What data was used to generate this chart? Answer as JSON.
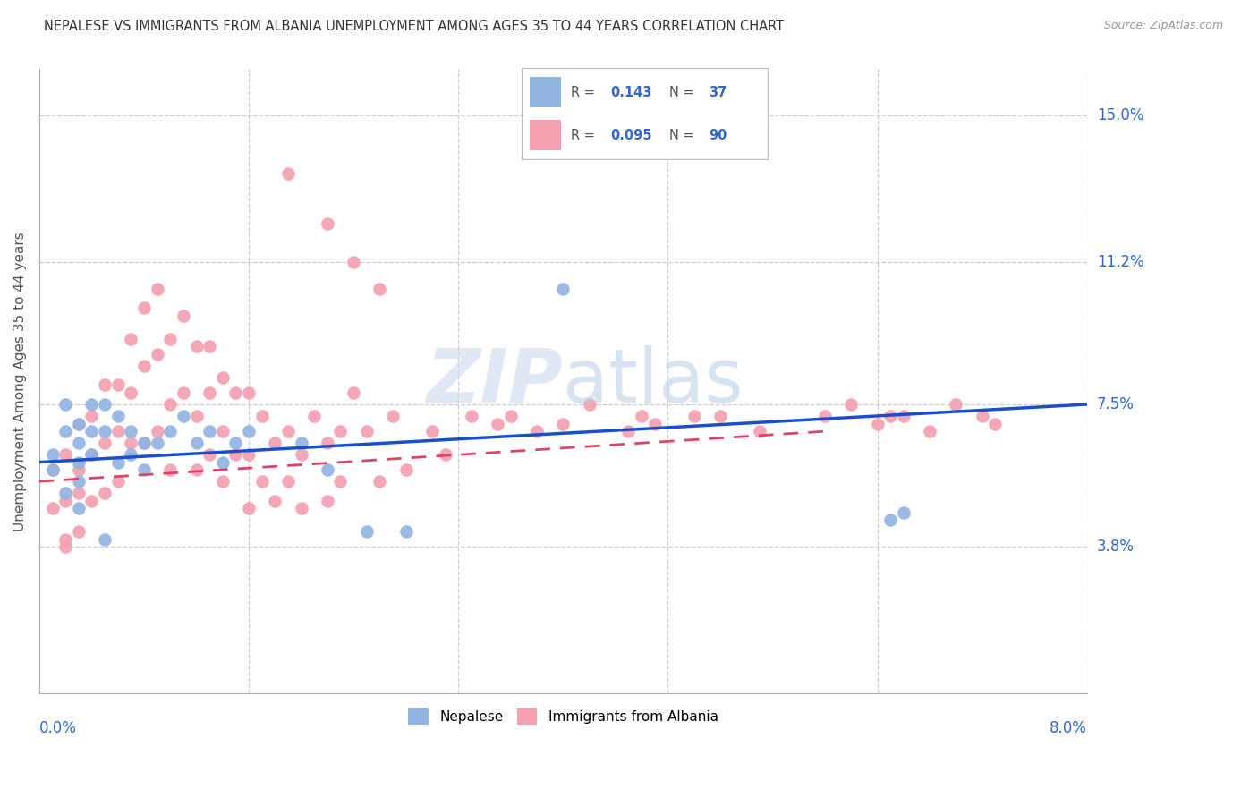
{
  "title": "NEPALESE VS IMMIGRANTS FROM ALBANIA UNEMPLOYMENT AMONG AGES 35 TO 44 YEARS CORRELATION CHART",
  "source": "Source: ZipAtlas.com",
  "ylabel": "Unemployment Among Ages 35 to 44 years",
  "ytick_labels": [
    "15.0%",
    "11.2%",
    "7.5%",
    "3.8%"
  ],
  "ytick_values": [
    0.15,
    0.112,
    0.075,
    0.038
  ],
  "xmin": 0.0,
  "xmax": 0.08,
  "ymin": 0.0,
  "ymax": 0.162,
  "nepalese_color": "#92b4e3",
  "albania_color": "#f4a0b0",
  "nepalese_line_color": "#1a4fcc",
  "albania_line_color": "#dd4466",
  "background_color": "#ffffff",
  "nepalese_line_start_y": 0.06,
  "nepalese_line_end_y": 0.075,
  "albania_line_start_y": 0.055,
  "albania_line_end_y": 0.068,
  "nep_x": [
    0.001,
    0.002,
    0.002,
    0.003,
    0.003,
    0.003,
    0.003,
    0.004,
    0.004,
    0.004,
    0.005,
    0.005,
    0.005,
    0.006,
    0.006,
    0.007,
    0.007,
    0.008,
    0.008,
    0.009,
    0.01,
    0.011,
    0.012,
    0.013,
    0.014,
    0.015,
    0.016,
    0.02,
    0.022,
    0.025,
    0.028,
    0.04,
    0.065,
    0.066,
    0.001,
    0.002,
    0.003
  ],
  "nep_y": [
    0.062,
    0.068,
    0.075,
    0.07,
    0.065,
    0.06,
    0.055,
    0.075,
    0.068,
    0.062,
    0.075,
    0.068,
    0.04,
    0.072,
    0.06,
    0.068,
    0.062,
    0.065,
    0.058,
    0.065,
    0.068,
    0.072,
    0.065,
    0.068,
    0.06,
    0.065,
    0.068,
    0.065,
    0.058,
    0.042,
    0.042,
    0.105,
    0.045,
    0.047,
    0.058,
    0.052,
    0.048
  ],
  "alb_x": [
    0.001,
    0.001,
    0.002,
    0.002,
    0.002,
    0.003,
    0.003,
    0.003,
    0.003,
    0.004,
    0.004,
    0.004,
    0.005,
    0.005,
    0.005,
    0.006,
    0.006,
    0.006,
    0.007,
    0.007,
    0.007,
    0.008,
    0.008,
    0.008,
    0.009,
    0.009,
    0.009,
    0.01,
    0.01,
    0.01,
    0.011,
    0.011,
    0.012,
    0.012,
    0.012,
    0.013,
    0.013,
    0.013,
    0.014,
    0.014,
    0.014,
    0.015,
    0.015,
    0.016,
    0.016,
    0.016,
    0.017,
    0.017,
    0.018,
    0.018,
    0.019,
    0.019,
    0.02,
    0.02,
    0.021,
    0.022,
    0.022,
    0.023,
    0.023,
    0.024,
    0.025,
    0.026,
    0.027,
    0.028,
    0.03,
    0.031,
    0.033,
    0.035,
    0.036,
    0.038,
    0.04,
    0.042,
    0.045,
    0.046,
    0.047,
    0.05,
    0.052,
    0.055,
    0.06,
    0.062,
    0.064,
    0.065,
    0.066,
    0.068,
    0.07,
    0.072,
    0.073,
    0.019,
    0.022,
    0.024,
    0.026,
    0.002
  ],
  "alb_y": [
    0.058,
    0.048,
    0.062,
    0.05,
    0.04,
    0.07,
    0.058,
    0.052,
    0.042,
    0.072,
    0.062,
    0.05,
    0.08,
    0.065,
    0.052,
    0.08,
    0.068,
    0.055,
    0.092,
    0.078,
    0.065,
    0.1,
    0.085,
    0.065,
    0.105,
    0.088,
    0.068,
    0.092,
    0.075,
    0.058,
    0.098,
    0.078,
    0.09,
    0.072,
    0.058,
    0.09,
    0.078,
    0.062,
    0.082,
    0.068,
    0.055,
    0.078,
    0.062,
    0.078,
    0.062,
    0.048,
    0.072,
    0.055,
    0.065,
    0.05,
    0.068,
    0.055,
    0.062,
    0.048,
    0.072,
    0.065,
    0.05,
    0.068,
    0.055,
    0.078,
    0.068,
    0.055,
    0.072,
    0.058,
    0.068,
    0.062,
    0.072,
    0.07,
    0.072,
    0.068,
    0.07,
    0.075,
    0.068,
    0.072,
    0.07,
    0.072,
    0.072,
    0.068,
    0.072,
    0.075,
    0.07,
    0.072,
    0.072,
    0.068,
    0.075,
    0.072,
    0.07,
    0.135,
    0.122,
    0.112,
    0.105,
    0.038
  ]
}
